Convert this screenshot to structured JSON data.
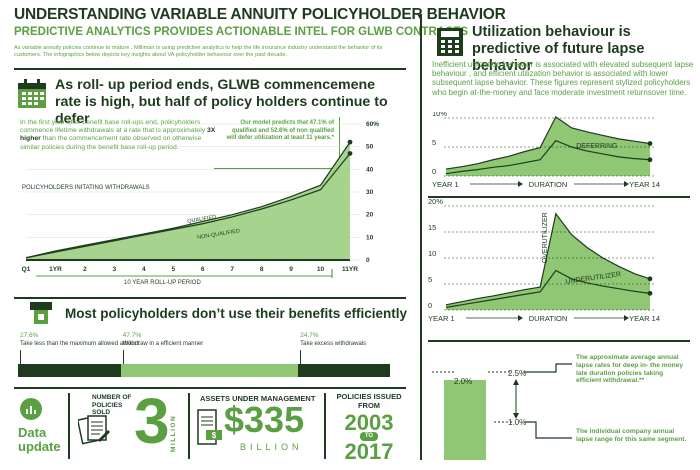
{
  "header": {
    "title": "UNDERSTANDING VARIABLE ANNUITY POLICYHOLDER BEHAVIOR",
    "subtitle": "PREDICTIVE ANALYTICS PROVIDES ACTIONABLE INTEL FOR GLWB CONTRACTS",
    "intro": "As variable annuity policies continue to mature , Milliman is using predictive analytics to help the life insurance industry understand the behavior of its customers. The infographics below depicts key insights about VA policyholder behaviour over the past decade."
  },
  "section1": {
    "heading": "As roll- up period ends, GLWB commencemene rate is high, but half of policy holders continue to defer",
    "body_before": "In the first year after benefit base roll-ups end, policyholders commence lifetime withdrawals at a rate that is approximately ",
    "body_bold": "3X higher",
    "body_after": " than the commencement rate observed on otherwise similar policies during the benefit base roll-up period.",
    "callout": "Our model predicts that 47.1% of qualified and 52.6% of non qualified will defer utilization at least 11 years.*",
    "chart_label": "POLICYHOLDERS INITATING WITHDRAWALS",
    "rollup_label": "10 YEAR ROLL-UP PERIOD"
  },
  "section2": {
    "heading": "Most policyholders don’t use their benefits efficiently",
    "items": [
      {
        "pct": "27.6%",
        "label": "Take less than the maximum allowed amount",
        "value": 27.6
      },
      {
        "pct": "47.7%",
        "label": "Withdraw in a efficient manner",
        "value": 47.7
      },
      {
        "pct": "24.7%",
        "label": "Take excess withdrawals",
        "value": 24.7
      }
    ]
  },
  "footer": {
    "update_label": "Data update",
    "policies_sold_label": "NUMBER OF POLICIES SOLD",
    "policies_sold_value": "3",
    "policies_sold_unit": "MILLION",
    "assets_label": "ASSETS UNDER MANAGEMENT",
    "assets_value": "$335",
    "assets_unit": "BILLION",
    "issued_label": "POLICIES ISSUED FROM",
    "issued_from": "2003",
    "issued_to_word": "TO",
    "issued_to": "2017"
  },
  "right": {
    "heading": "Utilization behaviour is predictive of future lapse behavior",
    "body": "Inefficient utilization behavior is associated with elevated subsequent lapse behaviour , and efficient utilization behavior is associated with lower subsequent lapse behavior. These figures represent stylized policyholders who begin at-the-money and face moderate investment returnsover time.",
    "note1": "The approximate average annual lapse rates for deep in- the money late duration policies taking efficient withdrawal.**",
    "note2": "The individual company annual lapse range for this same segment."
  },
  "colors": {
    "dark": "#1e3b1e",
    "green": "#5aa043",
    "light_fill": "#a6d38d",
    "mid_fill": "#8fc774"
  },
  "chart_data": [
    {
      "type": "area",
      "title": "",
      "x": [
        "Q1",
        "1YR",
        "2",
        "3",
        "4",
        "5",
        "6",
        "7",
        "8",
        "9",
        "10",
        "11YR"
      ],
      "yticks": [
        0,
        10,
        20,
        30,
        40,
        50,
        "60%"
      ],
      "ylim": [
        0,
        60
      ],
      "series": [
        {
          "name": "QUALIFIED",
          "values": [
            1,
            4,
            6.5,
            9,
            11.5,
            14,
            17,
            20,
            23.5,
            28,
            33,
            52
          ]
        },
        {
          "name": "NON-QUALIFIED",
          "values": [
            1,
            3.5,
            6,
            8.5,
            11,
            13.5,
            16,
            19,
            22.5,
            26.5,
            31,
            47
          ]
        }
      ],
      "annotation": "10 YEAR ROLL-UP PERIOD"
    },
    {
      "type": "area",
      "title": "",
      "xlabels": [
        "YEAR 1",
        "DURATION",
        "YEAR 14"
      ],
      "yticks": [
        "10%",
        5,
        0
      ],
      "ylim": [
        0,
        10
      ],
      "series": [
        {
          "name": "DEFERRING",
          "values": [
            1.2,
            1.6,
            2.1,
            2.8,
            3.4,
            4.2,
            4.9,
            10.2,
            8.3,
            7.6,
            7.0,
            6.4,
            6.0,
            5.6
          ]
        },
        {
          "name": "",
          "values": [
            0.4,
            0.8,
            1.1,
            1.5,
            1.8,
            2.3,
            2.8,
            6.1,
            5.0,
            4.3,
            3.8,
            3.3,
            3.0,
            2.8
          ]
        }
      ]
    },
    {
      "type": "area",
      "title": "",
      "xlabels": [
        "YEAR 1",
        "DURATION",
        "YEAR 14"
      ],
      "yticks": [
        "20%",
        15,
        10,
        5,
        0
      ],
      "ylim": [
        0,
        20
      ],
      "series": [
        {
          "name": "OVERUTILIZER",
          "values": [
            1.0,
            1.6,
            2.2,
            2.7,
            3.3,
            3.9,
            4.4,
            18.5,
            14.5,
            12.0,
            10.0,
            8.4,
            7.0,
            6.0
          ]
        },
        {
          "name": "UNDERUTILIZER",
          "values": [
            0.5,
            1.0,
            1.5,
            2.0,
            2.5,
            3.0,
            3.5,
            7.6,
            6.0,
            5.2,
            4.6,
            4.1,
            3.6,
            3.2
          ]
        }
      ]
    },
    {
      "type": "bar",
      "title": "",
      "categories": [
        ""
      ],
      "values": [
        2.0
      ],
      "labels": [
        "2.0%",
        "2.5%",
        "1.0%"
      ],
      "range": [
        1.0,
        2.5
      ]
    }
  ]
}
